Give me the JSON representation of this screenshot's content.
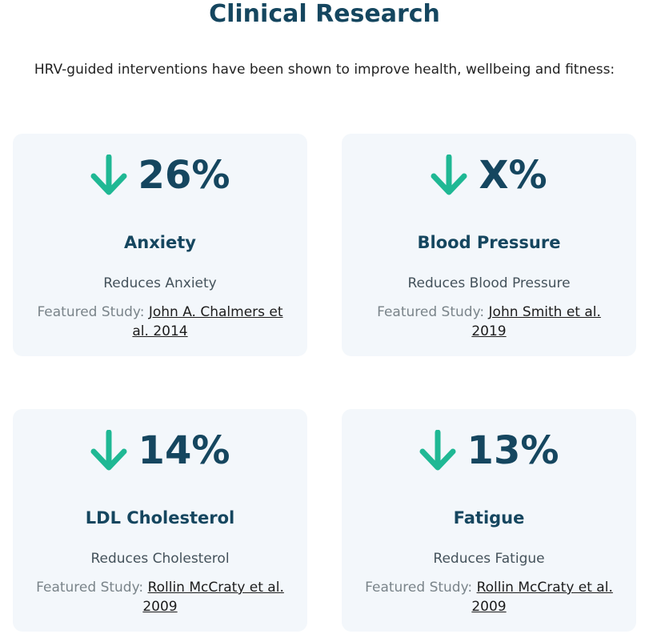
{
  "header": {
    "title": "Clinical Research",
    "intro": "HRV-guided interventions have been shown to improve health, wellbeing and fitness:"
  },
  "colors": {
    "accent": "#1fb894",
    "heading": "#15465f",
    "card_background": "#f3f7fb"
  },
  "cards": [
    {
      "icon": "arrow-down-icon",
      "value": "26%",
      "title": "Anxiety",
      "description": "Reduces Anxiety",
      "study_prefix": "Featured Study:",
      "study_link": "John A. Chalmers et al. 2014"
    },
    {
      "icon": "arrow-down-icon",
      "value": "X%",
      "title": "Blood Pressure",
      "description": "Reduces Blood Pressure",
      "study_prefix": "Featured Study:",
      "study_link": "John Smith et al. 2019"
    },
    {
      "icon": "arrow-down-icon",
      "value": "14%",
      "title": "LDL Cholesterol",
      "description": "Reduces Cholesterol",
      "study_prefix": "Featured Study:",
      "study_link": "Rollin McCraty et al. 2009"
    },
    {
      "icon": "arrow-down-icon",
      "value": "13%",
      "title": "Fatigue",
      "description": "Reduces Fatigue",
      "study_prefix": "Featured Study:",
      "study_link": "Rollin McCraty et al. 2009"
    }
  ]
}
